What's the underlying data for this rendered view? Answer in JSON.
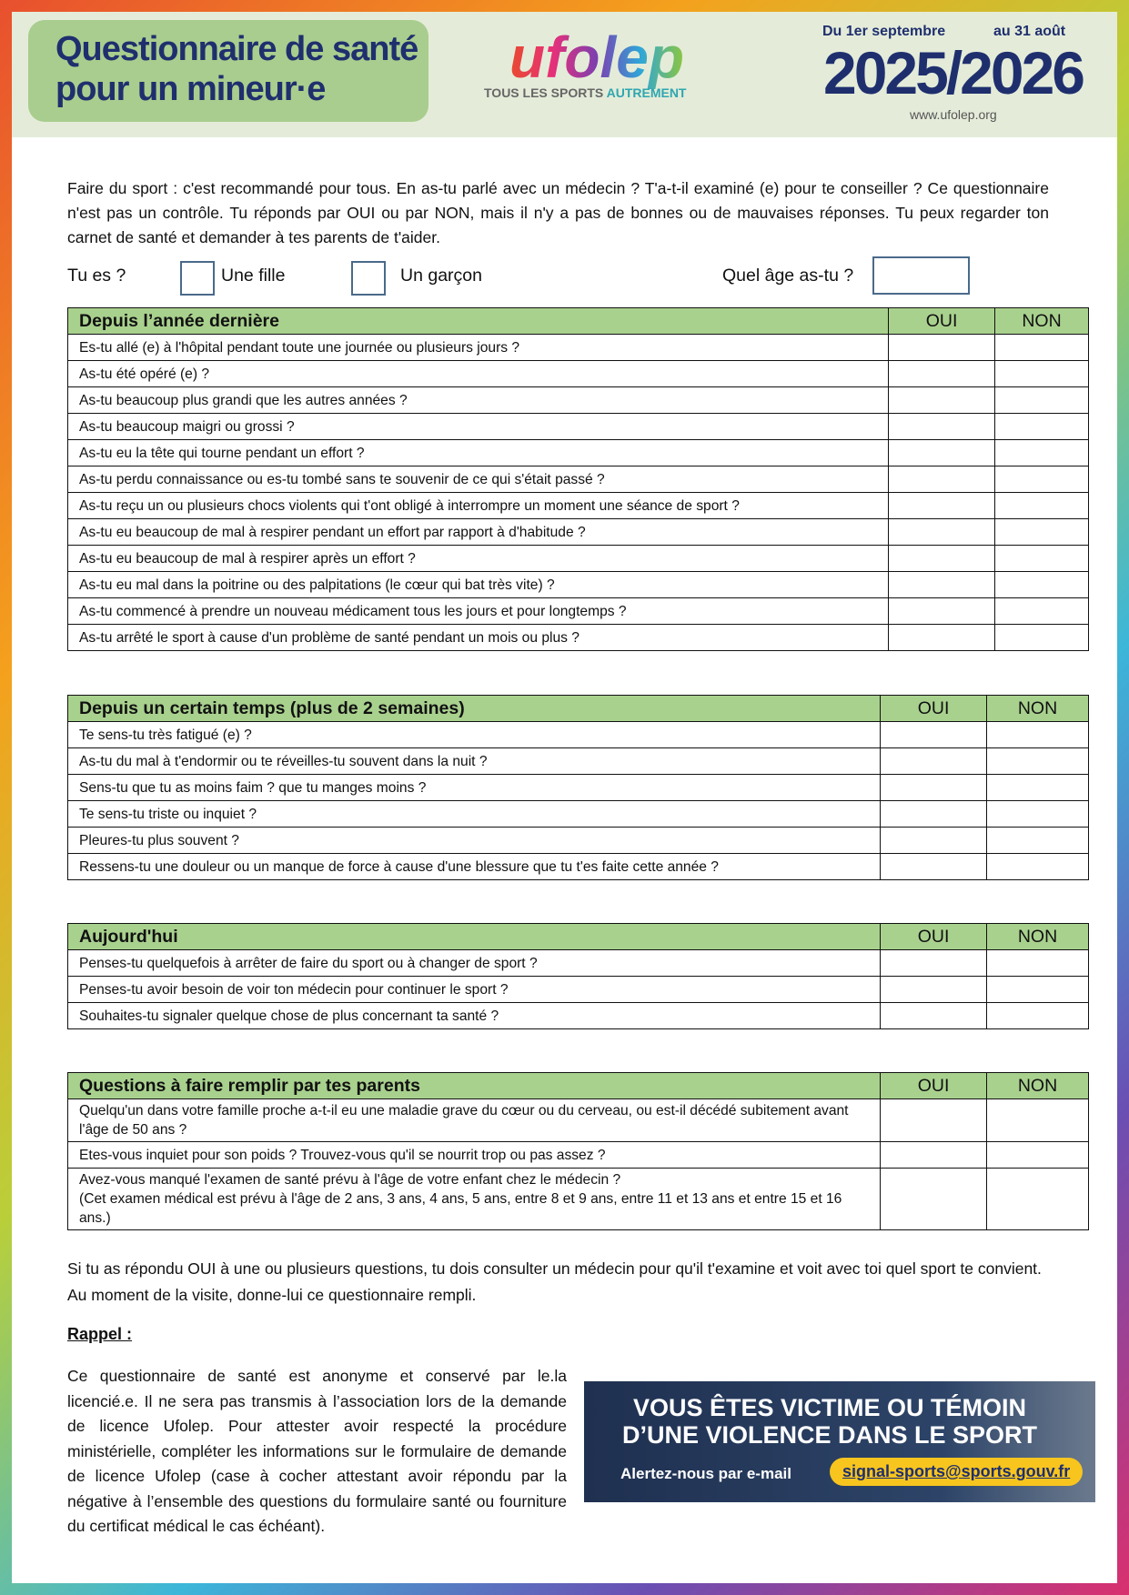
{
  "header": {
    "title_lines": [
      "Questionnaire de santé",
      "pour un mineur·e"
    ],
    "logo": "ufolep",
    "tagline_1": "TOUS LES SPORTS",
    "tagline_2": "AUTREMENT",
    "period_from": "Du 1er septembre",
    "period_to": "au 31 août",
    "season": "2025/2026",
    "website": "www.ufolep.org"
  },
  "intro": "Faire du sport : c'est recommandé pour tous. En as-tu parlé avec un médecin ? T'a-t-il examiné (e) pour te conseiller ? Ce questionnaire n'est pas un contrôle. Tu réponds par OUI ou par NON, mais il n'y a pas de bonnes ou de mauvaises réponses. Tu peux regarder ton carnet de santé et demander à tes parents de t'aider.",
  "identity": {
    "question": "Tu es ?",
    "options": [
      "Une fille",
      "Un garçon"
    ],
    "age_question": "Quel âge as-tu ?"
  },
  "tables": [
    {
      "header": "Depuis l’année dernière",
      "yes": "OUI",
      "no": "NON",
      "rows": [
        "Es-tu allé (e) à l'hôpital pendant toute une journée ou plusieurs jours ?",
        "As-tu été opéré (e) ?",
        "As-tu beaucoup plus grandi que les autres années ?",
        "As-tu beaucoup maigri ou grossi ?",
        "As-tu eu la tête qui tourne pendant un effort ?",
        "As-tu perdu connaissance ou es-tu tombé sans te souvenir de ce qui s'était passé ?",
        "As-tu reçu un ou plusieurs chocs violents qui t'ont obligé à interrompre un moment une séance de sport ?",
        "As-tu eu beaucoup de mal à respirer pendant un effort par rapport à d'habitude ?",
        "As-tu eu beaucoup de mal à respirer après un effort ?",
        "As-tu eu mal dans la poitrine ou des palpitations (le cœur qui bat très vite) ?",
        "As-tu commencé à prendre un nouveau médicament tous les jours et pour longtemps ?",
        "As-tu arrêté le sport à cause d'un problème de santé pendant un mois ou plus ?"
      ]
    },
    {
      "header": "Depuis un certain temps (plus de 2 semaines)",
      "yes": "OUI",
      "no": "NON",
      "rows": [
        "Te sens-tu très fatigué (e) ?",
        "As-tu du mal à t'endormir ou te réveilles-tu souvent dans la nuit ?",
        "Sens-tu que tu as moins faim ? que tu manges moins ?",
        "Te sens-tu triste ou inquiet ?",
        "Pleures-tu plus souvent ?",
        "Ressens-tu une douleur ou un manque de force à cause d'une blessure que tu t'es faite cette année ?"
      ]
    },
    {
      "header": "Aujourd'hui",
      "yes": "OUI",
      "no": "NON",
      "rows": [
        "Penses-tu quelquefois à arrêter de faire du sport ou à changer de sport ?",
        "Penses-tu avoir besoin de voir ton médecin pour continuer le sport ?",
        "Souhaites-tu signaler quelque chose de plus concernant ta santé ?"
      ]
    },
    {
      "header": "Questions à faire remplir par tes parents",
      "yes": "OUI",
      "no": "NON",
      "rows": [
        "Quelqu'un dans votre famille proche a-t-il eu une maladie grave du cœur ou du cerveau, ou est-il décédé subitement avant l'âge de 50 ans ?",
        "Etes-vous inquiet pour son poids ? Trouvez-vous qu'il se nourrit trop ou pas assez ?",
        "Avez-vous manqué l'examen de santé prévu à l'âge de votre enfant chez le médecin ?\n(Cet examen médical est prévu à l'âge de 2 ans, 3 ans, 4 ans, 5 ans, entre 8 et 9 ans, entre 11 et 13 ans et entre 15 et 16 ans.)"
      ]
    }
  ],
  "conclusion": "Si tu as répondu OUI à une ou plusieurs questions, tu dois consulter un médecin pour qu'il t'examine et voit avec toi quel sport te convient. Au moment de la visite, donne-lui ce questionnaire rempli.",
  "reminder": {
    "title": "Rappel :",
    "text": "Ce questionnaire de santé est anonyme et conservé par le.la licencié.e. Il ne sera pas transmis à l’association lors de la demande de licence Ufolep. Pour attester avoir respecté la procédure ministérielle, compléter les informations sur le formulaire de demande de licence Ufolep (case à cocher attestant avoir répondu par la négative à l’ensemble des questions du formulaire santé ou fourniture du certificat médical le cas échéant)."
  },
  "banner": {
    "line_1": "VOUS ÊTES VICTIME OU TÉMOIN",
    "line_2": "D’UNE VIOLENCE DANS LE SPORT",
    "cta": "Alertez-nous par e-mail",
    "email": "signal-sports@sports.gouv.fr"
  }
}
